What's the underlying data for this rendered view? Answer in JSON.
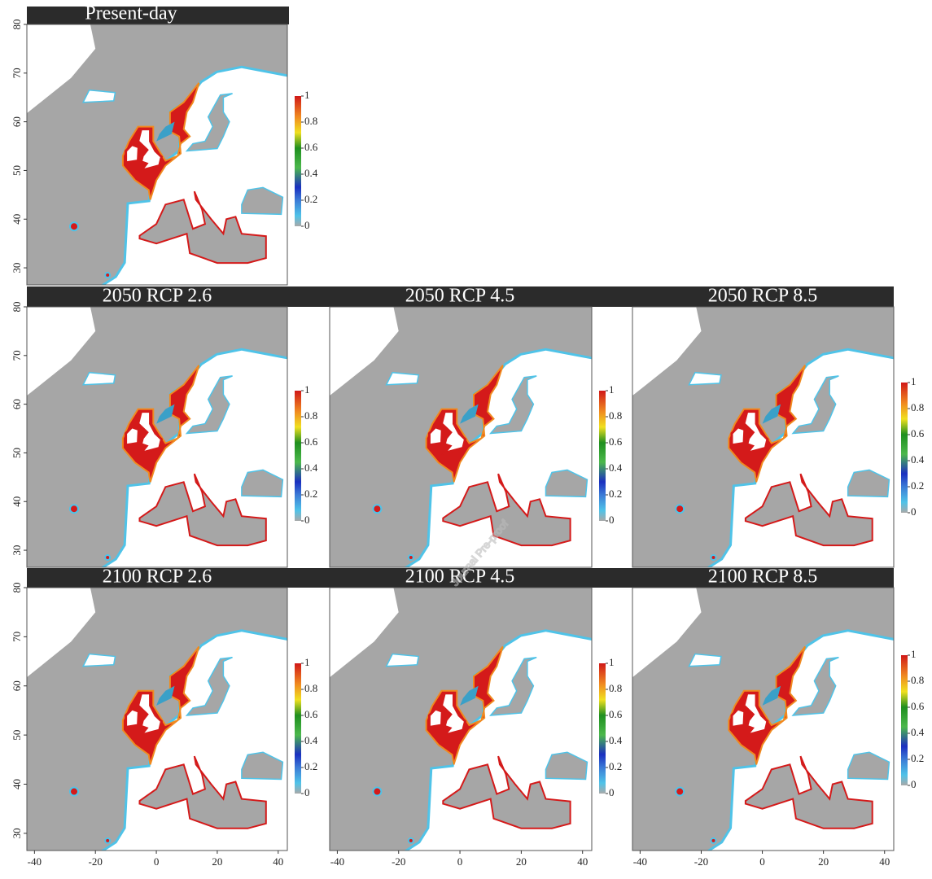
{
  "figure": {
    "panels": [
      {
        "title": "Present-day"
      },
      {
        "title": "2050 RCP 2.6"
      },
      {
        "title": "2050 RCP 4.5"
      },
      {
        "title": "2050 RCP 8.5"
      },
      {
        "title": "2100 RCP 2.6"
      },
      {
        "title": "2100 RCP 4.5"
      },
      {
        "title": "2100 RCP 8.5"
      }
    ],
    "yticks": [
      30,
      40,
      50,
      60,
      70,
      80
    ],
    "xticks": [
      -40,
      -20,
      0,
      20,
      40
    ],
    "colorbar_ticks": [
      0,
      0.2,
      0.4,
      0.6,
      0.8,
      1
    ],
    "watermark": "Journal Pre-proof"
  }
}
